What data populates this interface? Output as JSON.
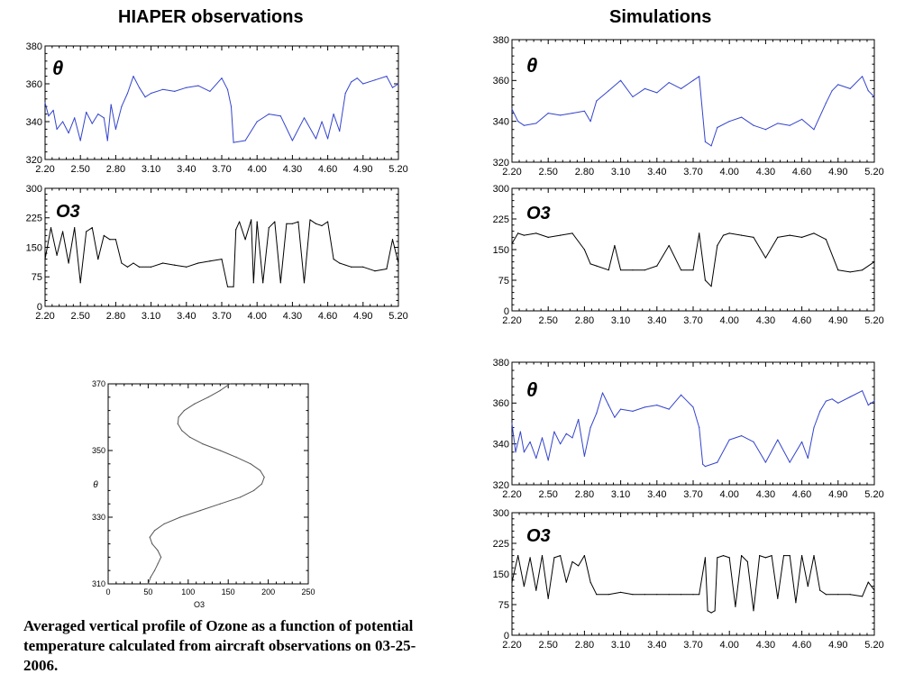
{
  "headings": {
    "left": "HIAPER observations",
    "right": "Simulations"
  },
  "caption": {
    "text": "Averaged vertical profile of Ozone as a function of potential temperature calculated from aircraft observations on 03-25-2006",
    "suffix": "."
  },
  "colors": {
    "theta_line": "#3344cc",
    "o3_line": "#000000",
    "profile_line": "#555555",
    "frame": "#000000"
  },
  "chart_data": [
    {
      "id": "obs-theta",
      "type": "line",
      "label": "θ",
      "xlim": [
        2.2,
        5.2
      ],
      "ylim": [
        320,
        380
      ],
      "xticks": [
        "2.20",
        "2.50",
        "2.80",
        "3.10",
        "3.40",
        "3.70",
        "4.00",
        "4.30",
        "4.60",
        "4.90",
        "5.20"
      ],
      "yticks": [
        "320",
        "340",
        "360",
        "380"
      ],
      "series": [
        {
          "color": "#3344cc",
          "x": [
            2.2,
            2.23,
            2.27,
            2.3,
            2.35,
            2.4,
            2.45,
            2.5,
            2.55,
            2.6,
            2.65,
            2.7,
            2.73,
            2.76,
            2.8,
            2.85,
            2.9,
            2.95,
            3.0,
            3.05,
            3.1,
            3.2,
            3.3,
            3.4,
            3.5,
            3.6,
            3.7,
            3.75,
            3.78,
            3.8,
            3.9,
            4.0,
            4.1,
            4.2,
            4.3,
            4.4,
            4.5,
            4.55,
            4.6,
            4.65,
            4.7,
            4.75,
            4.8,
            4.85,
            4.9,
            5.0,
            5.1,
            5.15,
            5.2
          ],
          "y": [
            350,
            343,
            346,
            336,
            340,
            334,
            342,
            330,
            345,
            339,
            344,
            342,
            330,
            349,
            336,
            348,
            355,
            364,
            358,
            353,
            355,
            357,
            356,
            358,
            359,
            356,
            363,
            357,
            348,
            329,
            330,
            340,
            344,
            343,
            330,
            342,
            331,
            340,
            331,
            344,
            335,
            355,
            361,
            363,
            360,
            362,
            364,
            358,
            360
          ]
        }
      ]
    },
    {
      "id": "obs-o3",
      "type": "line",
      "label": "O3",
      "xlim": [
        2.2,
        5.2
      ],
      "ylim": [
        0,
        300
      ],
      "xticks": [
        "2.20",
        "2.50",
        "2.80",
        "3.10",
        "3.40",
        "3.70",
        "4.00",
        "4.30",
        "4.60",
        "4.90",
        "5.20"
      ],
      "yticks": [
        "0",
        "75",
        "150",
        "225",
        "300"
      ],
      "series": [
        {
          "color": "#000000",
          "x": [
            2.2,
            2.25,
            2.3,
            2.35,
            2.4,
            2.45,
            2.5,
            2.55,
            2.6,
            2.65,
            2.7,
            2.75,
            2.8,
            2.85,
            2.9,
            2.95,
            3.0,
            3.1,
            3.2,
            3.3,
            3.4,
            3.5,
            3.6,
            3.7,
            3.75,
            3.8,
            3.82,
            3.85,
            3.9,
            3.95,
            3.97,
            4.0,
            4.05,
            4.1,
            4.15,
            4.2,
            4.25,
            4.3,
            4.35,
            4.4,
            4.45,
            4.5,
            4.55,
            4.6,
            4.65,
            4.7,
            4.8,
            4.9,
            5.0,
            5.1,
            5.15,
            5.2
          ],
          "y": [
            120,
            200,
            130,
            190,
            110,
            200,
            60,
            190,
            200,
            120,
            180,
            170,
            170,
            110,
            100,
            110,
            100,
            100,
            110,
            105,
            100,
            110,
            115,
            120,
            50,
            50,
            195,
            215,
            170,
            220,
            60,
            215,
            60,
            200,
            215,
            60,
            210,
            210,
            215,
            60,
            220,
            210,
            205,
            215,
            120,
            110,
            100,
            100,
            90,
            95,
            170,
            110
          ]
        }
      ]
    },
    {
      "id": "sim1-theta",
      "type": "line",
      "label": "θ",
      "xlim": [
        2.2,
        5.2
      ],
      "ylim": [
        320,
        380
      ],
      "xticks": [
        "2.20",
        "2.50",
        "2.80",
        "3.10",
        "3.40",
        "3.70",
        "4.00",
        "4.30",
        "4.60",
        "4.90",
        "5.20"
      ],
      "yticks": [
        "320",
        "340",
        "360",
        "380"
      ],
      "series": [
        {
          "color": "#3344cc",
          "x": [
            2.2,
            2.25,
            2.3,
            2.4,
            2.5,
            2.6,
            2.7,
            2.8,
            2.85,
            2.9,
            3.0,
            3.1,
            3.2,
            3.3,
            3.4,
            3.5,
            3.6,
            3.7,
            3.75,
            3.8,
            3.85,
            3.9,
            4.0,
            4.1,
            4.2,
            4.3,
            4.4,
            4.5,
            4.6,
            4.7,
            4.8,
            4.85,
            4.9,
            5.0,
            5.1,
            5.15,
            5.2
          ],
          "y": [
            346,
            340,
            338,
            339,
            344,
            343,
            344,
            345,
            340,
            350,
            355,
            360,
            352,
            356,
            354,
            359,
            356,
            360,
            362,
            330,
            328,
            337,
            340,
            342,
            338,
            336,
            339,
            338,
            341,
            336,
            349,
            355,
            358,
            356,
            362,
            355,
            352
          ]
        }
      ]
    },
    {
      "id": "sim1-o3",
      "type": "line",
      "label": "O3",
      "xlim": [
        2.2,
        5.2
      ],
      "ylim": [
        0,
        300
      ],
      "xticks": [
        "2.20",
        "2.50",
        "2.80",
        "3.10",
        "3.40",
        "3.70",
        "4.00",
        "4.30",
        "4.60",
        "4.90",
        "5.20"
      ],
      "yticks": [
        "0",
        "75",
        "150",
        "225",
        "300"
      ],
      "series": [
        {
          "color": "#000000",
          "x": [
            2.2,
            2.25,
            2.3,
            2.4,
            2.5,
            2.6,
            2.7,
            2.8,
            2.85,
            2.9,
            3.0,
            3.05,
            3.1,
            3.2,
            3.3,
            3.4,
            3.5,
            3.6,
            3.7,
            3.75,
            3.8,
            3.85,
            3.9,
            3.95,
            4.0,
            4.1,
            4.2,
            4.3,
            4.4,
            4.5,
            4.6,
            4.7,
            4.8,
            4.9,
            5.0,
            5.1,
            5.2
          ],
          "y": [
            165,
            190,
            185,
            190,
            180,
            185,
            190,
            150,
            115,
            110,
            100,
            160,
            100,
            100,
            100,
            110,
            160,
            100,
            100,
            190,
            75,
            60,
            160,
            185,
            190,
            185,
            180,
            130,
            180,
            185,
            180,
            190,
            175,
            100,
            95,
            100,
            120
          ]
        }
      ]
    },
    {
      "id": "sim2-theta",
      "type": "line",
      "label": "θ",
      "xlim": [
        2.2,
        5.2
      ],
      "ylim": [
        320,
        380
      ],
      "xticks": [
        "2.20",
        "2.50",
        "2.80",
        "3.10",
        "3.40",
        "3.70",
        "4.00",
        "4.30",
        "4.60",
        "4.90",
        "5.20"
      ],
      "yticks": [
        "320",
        "340",
        "360",
        "380"
      ],
      "series": [
        {
          "color": "#3344cc",
          "x": [
            2.2,
            2.23,
            2.27,
            2.3,
            2.35,
            2.4,
            2.45,
            2.5,
            2.55,
            2.6,
            2.65,
            2.7,
            2.75,
            2.8,
            2.85,
            2.9,
            2.95,
            3.0,
            3.05,
            3.1,
            3.2,
            3.3,
            3.4,
            3.5,
            3.6,
            3.7,
            3.75,
            3.78,
            3.8,
            3.9,
            4.0,
            4.1,
            4.2,
            4.3,
            4.4,
            4.5,
            4.6,
            4.65,
            4.7,
            4.75,
            4.8,
            4.85,
            4.9,
            5.0,
            5.1,
            5.15,
            5.2
          ],
          "y": [
            350,
            336,
            346,
            336,
            341,
            333,
            343,
            332,
            346,
            340,
            345,
            343,
            352,
            334,
            348,
            355,
            365,
            359,
            353,
            357,
            356,
            358,
            359,
            357,
            364,
            358,
            348,
            330,
            329,
            331,
            342,
            344,
            341,
            331,
            342,
            331,
            341,
            333,
            348,
            356,
            361,
            362,
            360,
            363,
            366,
            359,
            361
          ]
        }
      ]
    },
    {
      "id": "sim2-o3",
      "type": "line",
      "label": "O3",
      "xlim": [
        2.2,
        5.2
      ],
      "ylim": [
        0,
        300
      ],
      "xticks": [
        "2.20",
        "2.50",
        "2.80",
        "3.10",
        "3.40",
        "3.70",
        "4.00",
        "4.30",
        "4.60",
        "4.90",
        "5.20"
      ],
      "yticks": [
        "0",
        "75",
        "150",
        "225",
        "300"
      ],
      "series": [
        {
          "color": "#000000",
          "x": [
            2.2,
            2.25,
            2.3,
            2.35,
            2.4,
            2.45,
            2.5,
            2.55,
            2.6,
            2.65,
            2.7,
            2.75,
            2.8,
            2.85,
            2.9,
            3.0,
            3.1,
            3.2,
            3.3,
            3.4,
            3.5,
            3.6,
            3.7,
            3.75,
            3.8,
            3.82,
            3.85,
            3.88,
            3.9,
            3.95,
            4.0,
            4.05,
            4.1,
            4.15,
            4.2,
            4.25,
            4.3,
            4.35,
            4.4,
            4.45,
            4.5,
            4.55,
            4.6,
            4.65,
            4.7,
            4.75,
            4.8,
            4.9,
            5.0,
            5.1,
            5.15,
            5.2
          ],
          "y": [
            130,
            195,
            120,
            190,
            110,
            195,
            90,
            190,
            195,
            130,
            180,
            170,
            195,
            130,
            100,
            100,
            105,
            100,
            100,
            100,
            100,
            100,
            100,
            100,
            190,
            60,
            55,
            60,
            190,
            195,
            190,
            70,
            195,
            180,
            60,
            195,
            190,
            195,
            90,
            195,
            195,
            80,
            195,
            120,
            195,
            110,
            100,
            100,
            100,
            95,
            130,
            110
          ]
        }
      ]
    },
    {
      "id": "profile",
      "type": "line",
      "xlim": [
        0,
        250
      ],
      "ylim": [
        310,
        370
      ],
      "xticks": [
        "0",
        "50",
        "100",
        "150",
        "200",
        "250"
      ],
      "yticks": [
        "310",
        "330",
        "350",
        "370"
      ],
      "xlabel": "O3",
      "ylabel": "θ",
      "series": [
        {
          "color": "#555555",
          "x": [
            50,
            53,
            58,
            62,
            66,
            62,
            55,
            52,
            58,
            70,
            90,
            115,
            140,
            165,
            182,
            192,
            195,
            190,
            178,
            160,
            140,
            118,
            102,
            92,
            87,
            88,
            95,
            108,
            125,
            140,
            152
          ],
          "y": [
            310,
            312,
            314,
            316,
            318,
            320,
            322,
            324,
            326,
            328,
            330,
            332,
            334,
            336,
            338,
            340,
            342,
            344,
            346,
            348,
            350,
            352,
            354,
            356,
            358,
            360,
            362,
            364,
            366,
            368,
            370
          ]
        }
      ]
    }
  ]
}
